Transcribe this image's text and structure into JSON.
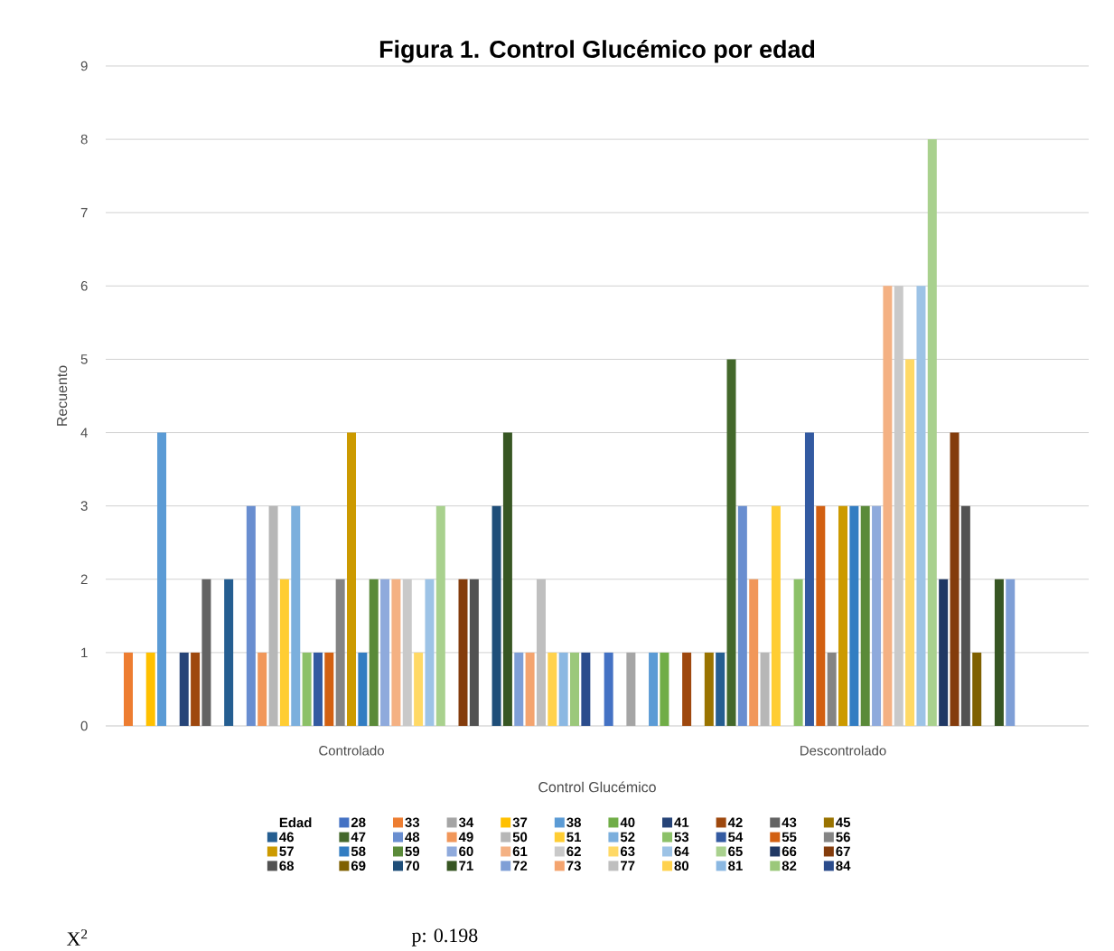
{
  "chart_data": {
    "type": "bar",
    "title": "Figura 1. Control Glucémico por edad",
    "xlabel": "Control Glucémico",
    "ylabel": "Recuento",
    "legend_title": "Edad",
    "categories": [
      "Controlado",
      "Descontrolado"
    ],
    "ylim": [
      0,
      9
    ],
    "yticks": [
      0,
      1,
      2,
      3,
      4,
      5,
      6,
      7,
      8,
      9
    ],
    "grid": "y",
    "legend": "bottom",
    "annotations": [
      "X$^{2}$",
      "p: 0.198"
    ],
    "series": [
      {
        "name": "28",
        "color": "#4472c4",
        "values": [
          null,
          1
        ]
      },
      {
        "name": "33",
        "color": "#ed7d31",
        "values": [
          1,
          null
        ]
      },
      {
        "name": "34",
        "color": "#a5a5a5",
        "values": [
          null,
          1
        ]
      },
      {
        "name": "37",
        "color": "#ffc000",
        "values": [
          1,
          null
        ]
      },
      {
        "name": "38",
        "color": "#5b9bd5",
        "values": [
          4,
          1
        ]
      },
      {
        "name": "40",
        "color": "#70ad47",
        "values": [
          null,
          1
        ]
      },
      {
        "name": "41",
        "color": "#264478",
        "values": [
          1,
          null
        ]
      },
      {
        "name": "42",
        "color": "#9e480e",
        "values": [
          1,
          1
        ]
      },
      {
        "name": "43",
        "color": "#636363",
        "values": [
          2,
          null
        ]
      },
      {
        "name": "45",
        "color": "#997300",
        "values": [
          null,
          1
        ]
      },
      {
        "name": "46",
        "color": "#255e91",
        "values": [
          2,
          1
        ]
      },
      {
        "name": "47",
        "color": "#43682b",
        "values": [
          null,
          5
        ]
      },
      {
        "name": "48",
        "color": "#698ed0",
        "values": [
          3,
          3
        ]
      },
      {
        "name": "49",
        "color": "#f1975a",
        "values": [
          1,
          2
        ]
      },
      {
        "name": "50",
        "color": "#b7b7b7",
        "values": [
          3,
          1
        ]
      },
      {
        "name": "51",
        "color": "#ffcd33",
        "values": [
          2,
          3
        ]
      },
      {
        "name": "52",
        "color": "#7cafdd",
        "values": [
          3,
          null
        ]
      },
      {
        "name": "53",
        "color": "#8cc168",
        "values": [
          1,
          2
        ]
      },
      {
        "name": "54",
        "color": "#335aa1",
        "values": [
          1,
          4
        ]
      },
      {
        "name": "55",
        "color": "#d26012",
        "values": [
          1,
          3
        ]
      },
      {
        "name": "56",
        "color": "#848484",
        "values": [
          2,
          1
        ]
      },
      {
        "name": "57",
        "color": "#cc9a00",
        "values": [
          4,
          3
        ]
      },
      {
        "name": "58",
        "color": "#327dc2",
        "values": [
          1,
          3
        ]
      },
      {
        "name": "59",
        "color": "#5a8a39",
        "values": [
          2,
          3
        ]
      },
      {
        "name": "60",
        "color": "#8faadc",
        "values": [
          2,
          3
        ]
      },
      {
        "name": "61",
        "color": "#f4b183",
        "values": [
          2,
          6
        ]
      },
      {
        "name": "62",
        "color": "#c9c9c9",
        "values": [
          2,
          6
        ]
      },
      {
        "name": "63",
        "color": "#ffd966",
        "values": [
          1,
          5
        ]
      },
      {
        "name": "64",
        "color": "#9dc3e6",
        "values": [
          2,
          6
        ]
      },
      {
        "name": "65",
        "color": "#a9d18e",
        "values": [
          3,
          8
        ]
      },
      {
        "name": "66",
        "color": "#203864",
        "values": [
          null,
          2
        ]
      },
      {
        "name": "67",
        "color": "#843c0c",
        "values": [
          2,
          4
        ]
      },
      {
        "name": "68",
        "color": "#525252",
        "values": [
          2,
          3
        ]
      },
      {
        "name": "69",
        "color": "#7f6000",
        "values": [
          null,
          1
        ]
      },
      {
        "name": "70",
        "color": "#1f4e79",
        "values": [
          3,
          null
        ]
      },
      {
        "name": "71",
        "color": "#375623",
        "values": [
          4,
          2
        ]
      },
      {
        "name": "72",
        "color": "#7f9fd6",
        "values": [
          1,
          2
        ]
      },
      {
        "name": "73",
        "color": "#f4a46f",
        "values": [
          1,
          null
        ]
      },
      {
        "name": "77",
        "color": "#bfbfbf",
        "values": [
          2,
          null
        ]
      },
      {
        "name": "80",
        "color": "#ffd24d",
        "values": [
          1,
          null
        ]
      },
      {
        "name": "81",
        "color": "#8bb8e2",
        "values": [
          1,
          null
        ]
      },
      {
        "name": "82",
        "color": "#9bc87b",
        "values": [
          1,
          null
        ]
      },
      {
        "name": "84",
        "color": "#2b4c8c",
        "values": [
          1,
          null
        ]
      }
    ]
  }
}
